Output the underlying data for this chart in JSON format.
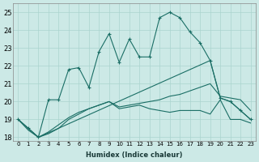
{
  "xlabel": "Humidex (Indice chaleur)",
  "xlim": [
    -0.5,
    23.5
  ],
  "ylim": [
    17.8,
    25.5
  ],
  "xticks": [
    0,
    1,
    2,
    3,
    4,
    5,
    6,
    7,
    8,
    9,
    10,
    11,
    12,
    13,
    14,
    15,
    16,
    17,
    18,
    19,
    20,
    21,
    22,
    23
  ],
  "yticks": [
    18,
    19,
    20,
    21,
    22,
    23,
    24,
    25
  ],
  "bg_color": "#cce9e6",
  "line_color": "#1a6e65",
  "grid_color": "#aad4cf",
  "line1_x": [
    0,
    1,
    2,
    3,
    4,
    5,
    6,
    7,
    8,
    9,
    10,
    11,
    12,
    13,
    14,
    15,
    16,
    17,
    18,
    19,
    20,
    21,
    22,
    23
  ],
  "line1_y": [
    19.0,
    18.5,
    18.0,
    20.1,
    20.1,
    21.8,
    21.9,
    20.8,
    22.8,
    23.8,
    22.2,
    23.5,
    22.5,
    22.5,
    24.7,
    25.0,
    24.7,
    23.9,
    23.3,
    22.3,
    20.2,
    20.0,
    19.5,
    19.0
  ],
  "line2_x": [
    0,
    2,
    3,
    4,
    5,
    6,
    7,
    8,
    9,
    10,
    11,
    12,
    13,
    14,
    15,
    16,
    17,
    18,
    19,
    20,
    21,
    22,
    23
  ],
  "line2_y": [
    19.0,
    18.0,
    18.2,
    18.5,
    19.0,
    19.3,
    19.6,
    19.8,
    20.0,
    19.7,
    19.8,
    19.9,
    20.0,
    20.1,
    20.3,
    20.4,
    20.6,
    20.8,
    21.0,
    20.3,
    20.2,
    20.1,
    19.5
  ],
  "line3_x": [
    0,
    1,
    2,
    3,
    4,
    5,
    6,
    7,
    8,
    9,
    10,
    11,
    12,
    13,
    14,
    15,
    16,
    17,
    18,
    19,
    20,
    21,
    22,
    23
  ],
  "line3_y": [
    19.0,
    18.4,
    18.0,
    18.3,
    18.7,
    19.1,
    19.4,
    19.6,
    19.8,
    20.0,
    19.6,
    19.7,
    19.8,
    19.6,
    19.5,
    19.4,
    19.5,
    19.5,
    19.5,
    19.3,
    20.1,
    19.0,
    19.0,
    18.8
  ],
  "line4_x": [
    0,
    2,
    19,
    20,
    21,
    22,
    23
  ],
  "line4_y": [
    19.0,
    18.0,
    22.3,
    20.2,
    20.0,
    19.5,
    19.0
  ],
  "line1_marker_x": [
    0,
    1,
    2,
    3,
    4,
    5,
    6,
    7,
    8,
    9,
    10,
    11,
    12,
    13,
    14,
    15,
    16,
    17,
    18,
    19,
    20,
    21,
    22,
    23
  ],
  "line1_marker_y": [
    19.0,
    18.5,
    18.0,
    20.1,
    20.1,
    21.8,
    21.9,
    20.8,
    22.8,
    23.8,
    22.2,
    23.5,
    22.5,
    22.5,
    24.7,
    25.0,
    24.7,
    23.9,
    23.3,
    22.3,
    20.2,
    20.0,
    19.5,
    19.0
  ]
}
